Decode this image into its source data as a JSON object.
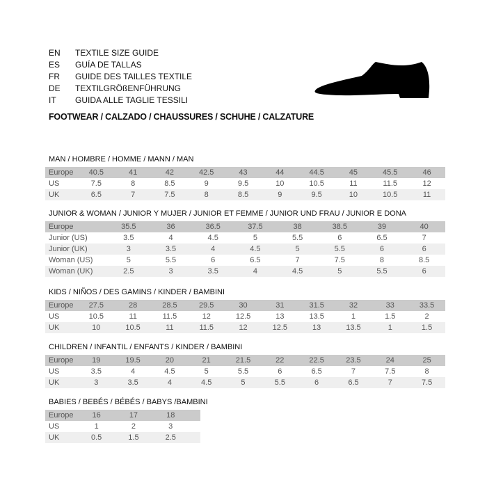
{
  "guide_titles": [
    {
      "code": "EN",
      "title": "TEXTILE SIZE GUIDE"
    },
    {
      "code": "ES",
      "title": "GUÍA DE TALLAS"
    },
    {
      "code": "FR",
      "title": "GUIDE DES TAILLES TEXTILE"
    },
    {
      "code": "DE",
      "title": "TEXTILGRÖßENFÜHRUNG"
    },
    {
      "code": "IT",
      "title": "GUIDA ALLE TAGLIE TESSILI"
    }
  ],
  "footwear_title": "FOOTWEAR / CALZADO / CHAUSSURES / SCHUHE / CALZATURE",
  "icon": "shoe-silhouette-icon",
  "colors": {
    "header_row": "#cbcbcb",
    "alt_row": "#efefef"
  },
  "sections": [
    {
      "title": "MAN / HOMBRE / HOMME / MANN / MAN",
      "rows": [
        {
          "label": "Europe",
          "values": [
            "40.5",
            "41",
            "42",
            "42.5",
            "43",
            "44",
            "44.5",
            "45",
            "45.5",
            "46"
          ]
        },
        {
          "label": "US",
          "values": [
            "7.5",
            "8",
            "8.5",
            "9",
            "9.5",
            "10",
            "10.5",
            "11",
            "11.5",
            "12"
          ]
        },
        {
          "label": "UK",
          "values": [
            "6.5",
            "7",
            "7.5",
            "8",
            "8.5",
            "9",
            "9.5",
            "10",
            "10.5",
            "11"
          ]
        }
      ]
    },
    {
      "title": "JUNIOR & WOMAN / JUNIOR Y MUJER / JUNIOR ET FEMME / JUNIOR UND FRAU / JUNIOR E DONA",
      "rows": [
        {
          "label": "Europe",
          "values": [
            "35.5",
            "36",
            "36.5",
            "37.5",
            "38",
            "38.5",
            "39",
            "40"
          ]
        },
        {
          "label": "Junior (US)",
          "values": [
            "3.5",
            "4",
            "4.5",
            "5",
            "5.5",
            "6",
            "6.5",
            "7"
          ]
        },
        {
          "label": "Junior (UK)",
          "values": [
            "3",
            "3.5",
            "4",
            "4.5",
            "5",
            "5.5",
            "6",
            "6"
          ]
        },
        {
          "label": "Woman (US)",
          "values": [
            "5",
            "5.5",
            "6",
            "6.5",
            "7",
            "7.5",
            "8",
            "8.5"
          ]
        },
        {
          "label": "Woman (UK)",
          "values": [
            "2.5",
            "3",
            "3.5",
            "4",
            "4.5",
            "5",
            "5.5",
            "6"
          ]
        }
      ]
    },
    {
      "title": "KIDS / NIÑOS / DES GAMINS / KINDER / BAMBINI",
      "rows": [
        {
          "label": "Europe",
          "values": [
            "27.5",
            "28",
            "28.5",
            "29.5",
            "30",
            "31",
            "31.5",
            "32",
            "33",
            "33.5"
          ]
        },
        {
          "label": "US",
          "values": [
            "10.5",
            "11",
            "11.5",
            "12",
            "12.5",
            "13",
            "13.5",
            "1",
            "1.5",
            "2"
          ]
        },
        {
          "label": "UK",
          "values": [
            "10",
            "10.5",
            "11",
            "11.5",
            "12",
            "12.5",
            "13",
            "13.5",
            "1",
            "1.5"
          ]
        }
      ]
    },
    {
      "title": "CHILDREN / INFANTIL / ENFANTS / KINDER / BAMBINI",
      "rows": [
        {
          "label": "Europe",
          "values": [
            "19",
            "19.5",
            "20",
            "21",
            "21.5",
            "22",
            "22.5",
            "23.5",
            "24",
            "25"
          ]
        },
        {
          "label": "US",
          "values": [
            "3.5",
            "4",
            "4.5",
            "5",
            "5.5",
            "6",
            "6.5",
            "7",
            "7.5",
            "8"
          ]
        },
        {
          "label": "UK",
          "values": [
            "3",
            "3.5",
            "4",
            "4.5",
            "5",
            "5.5",
            "6",
            "6.5",
            "7",
            "7.5"
          ]
        }
      ]
    },
    {
      "title": "BABIES  / BEBÉS / BÉBÉS / BABYS /BAMBINI",
      "rows": [
        {
          "label": "Europe",
          "values": [
            "16",
            "17",
            "18"
          ]
        },
        {
          "label": "US",
          "values": [
            "1",
            "2",
            "3"
          ]
        },
        {
          "label": "UK",
          "values": [
            "0.5",
            "1.5",
            "2.5"
          ]
        }
      ]
    }
  ]
}
